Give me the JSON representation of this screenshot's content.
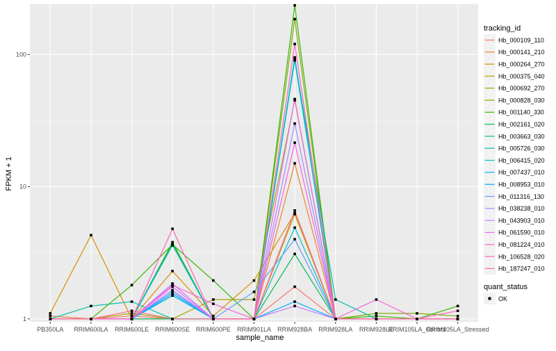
{
  "chart_data": {
    "type": "line",
    "yscale": "log10",
    "xlabel": "sample_name",
    "ylabel": "FPKM + 1",
    "ylim": [
      0.95,
      240
    ],
    "y_ticks": [
      {
        "value": 1,
        "label": "1"
      },
      {
        "value": 10,
        "label": "10"
      },
      {
        "value": 100,
        "label": "100"
      }
    ],
    "grid": true,
    "categories": [
      "PB350LA",
      "RRIM600LA",
      "RRIM600LE",
      "RRIM600SE",
      "RRIM600PE",
      "RRIM901LA",
      "RRIM928BA",
      "RRIM928LA",
      "RRIM928LE",
      "RRIM105LA_Control",
      "RRIM105LA_Stressed"
    ],
    "legend": {
      "position": "right",
      "title": "tracking_id",
      "point_title": "quant_status",
      "point_label": "OK"
    },
    "series": [
      {
        "name": "Hb_000109_110",
        "color": "#F8766D",
        "values": [
          1.0,
          1.0,
          1.05,
          1.0,
          1.0,
          1.0,
          1.75,
          1.0,
          1.0,
          1.0,
          1.0
        ]
      },
      {
        "name": "Hb_000141_210",
        "color": "#EA8331",
        "values": [
          1.05,
          1.0,
          1.0,
          1.0,
          1.0,
          1.0,
          15.0,
          1.0,
          1.0,
          1.0,
          1.0
        ]
      },
      {
        "name": "Hb_000264_270",
        "color": "#D89000",
        "values": [
          1.1,
          4.3,
          1.0,
          2.3,
          1.05,
          1.95,
          6.3,
          1.0,
          1.0,
          1.0,
          1.0
        ]
      },
      {
        "name": "Hb_000375_040",
        "color": "#C09B00",
        "values": [
          1.0,
          1.0,
          1.0,
          1.0,
          1.0,
          1.0,
          6.2,
          1.0,
          1.0,
          1.0,
          1.0
        ]
      },
      {
        "name": "Hb_000692_270",
        "color": "#A3A500",
        "values": [
          1.0,
          1.0,
          1.1,
          1.0,
          1.4,
          1.4,
          45.0,
          1.0,
          1.0,
          1.0,
          1.0
        ]
      },
      {
        "name": "Hb_000828_030",
        "color": "#7CAE00",
        "values": [
          1.0,
          1.0,
          1.0,
          3.7,
          1.0,
          1.0,
          185.0,
          1.0,
          1.1,
          1.1,
          1.05
        ]
      },
      {
        "name": "Hb_001140_330",
        "color": "#39B600",
        "values": [
          1.0,
          1.0,
          1.8,
          3.65,
          1.95,
          1.0,
          235.0,
          1.0,
          1.05,
          1.0,
          1.25
        ]
      },
      {
        "name": "Hb_002161_020",
        "color": "#00BB4E",
        "values": [
          1.0,
          1.0,
          1.0,
          3.8,
          1.0,
          1.0,
          3.1,
          1.0,
          1.0,
          1.0,
          1.0
        ]
      },
      {
        "name": "Hb_003663_030",
        "color": "#00BF7D",
        "values": [
          1.0,
          1.0,
          1.0,
          1.0,
          1.0,
          1.0,
          95.0,
          1.0,
          1.0,
          1.0,
          1.0
        ]
      },
      {
        "name": "Hb_005726_030",
        "color": "#00C1A3",
        "values": [
          1.0,
          1.25,
          1.35,
          1.0,
          1.0,
          1.0,
          92.0,
          1.4,
          1.0,
          1.0,
          1.0
        ]
      },
      {
        "name": "Hb_006415_020",
        "color": "#00BFC4",
        "values": [
          1.0,
          1.0,
          1.0,
          3.6,
          1.0,
          1.0,
          4.9,
          1.0,
          1.0,
          1.0,
          1.0
        ]
      },
      {
        "name": "Hb_007437_010",
        "color": "#00B8E7",
        "values": [
          1.0,
          1.0,
          1.0,
          1.5,
          1.0,
          1.0,
          90.0,
          1.0,
          1.0,
          1.0,
          1.0
        ]
      },
      {
        "name": "Hb_008953_010",
        "color": "#00A9FF",
        "values": [
          1.0,
          1.0,
          1.0,
          1.55,
          1.0,
          1.0,
          1.35,
          1.0,
          1.0,
          1.0,
          1.0
        ]
      },
      {
        "name": "Hb_011316_130",
        "color": "#619CFF",
        "values": [
          1.0,
          1.0,
          1.0,
          1.6,
          1.0,
          1.6,
          4.0,
          1.0,
          1.0,
          1.0,
          1.0
        ]
      },
      {
        "name": "Hb_038238_010",
        "color": "#9F8CFF",
        "values": [
          1.0,
          1.0,
          1.0,
          1.65,
          1.0,
          1.0,
          30.0,
          1.0,
          1.0,
          1.0,
          1.0
        ]
      },
      {
        "name": "Hb_043903_010",
        "color": "#C77CFF",
        "values": [
          1.0,
          1.0,
          1.0,
          1.85,
          1.0,
          1.0,
          1.25,
          1.0,
          1.0,
          1.0,
          1.0
        ]
      },
      {
        "name": "Hb_061590_010",
        "color": "#E76BF3",
        "values": [
          1.0,
          1.0,
          1.0,
          1.75,
          1.0,
          1.0,
          46.0,
          1.0,
          1.0,
          1.0,
          1.0
        ]
      },
      {
        "name": "Hb_081224_010",
        "color": "#F763E0",
        "values": [
          1.0,
          1.0,
          1.0,
          1.8,
          1.3,
          1.0,
          21.5,
          1.0,
          1.4,
          1.0,
          1.0
        ]
      },
      {
        "name": "Hb_106528_020",
        "color": "#FF62BC",
        "values": [
          1.0,
          1.0,
          1.0,
          4.8,
          1.0,
          1.0,
          120.0,
          1.0,
          1.0,
          1.0,
          1.15
        ]
      },
      {
        "name": "Hb_187247_010",
        "color": "#FF6C91",
        "values": [
          1.0,
          1.0,
          1.15,
          1.0,
          1.0,
          1.0,
          6.6,
          1.0,
          1.0,
          1.0,
          1.0
        ]
      }
    ]
  }
}
